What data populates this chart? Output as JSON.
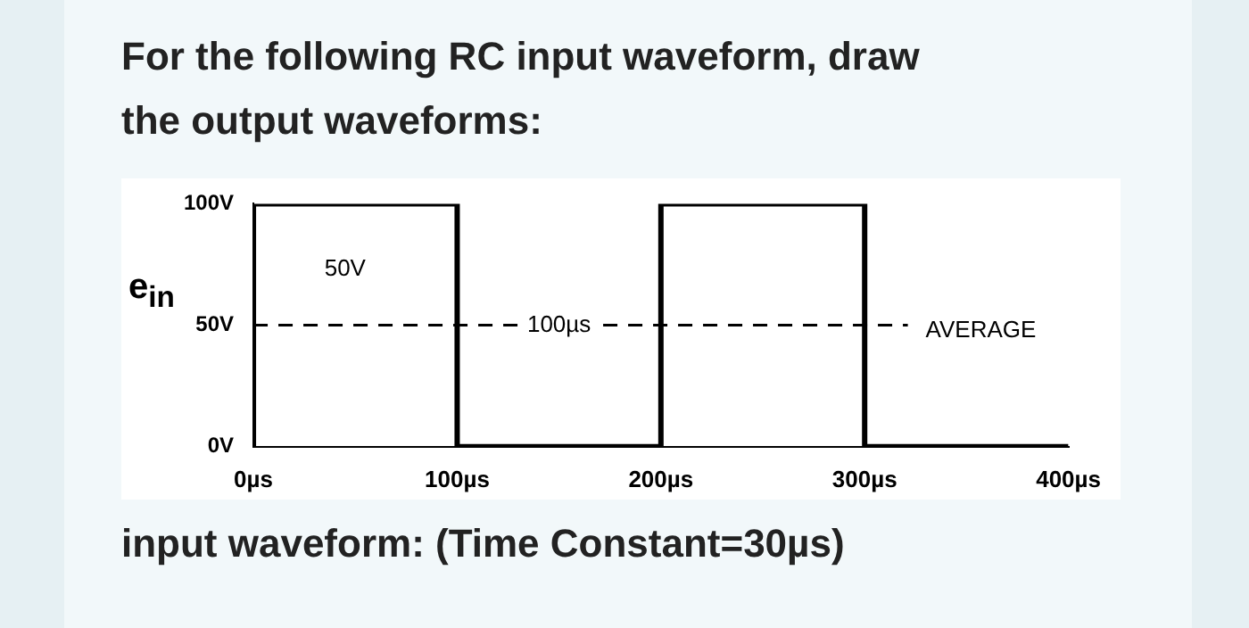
{
  "chart_data": {
    "type": "step",
    "title": "For the following RC input waveform, draw the output waveforms:",
    "ylabel": "e$_{in}$",
    "x": [
      0,
      0,
      100,
      200,
      300,
      400
    ],
    "series": [
      {
        "color": "#000000",
        "values": [
          0,
          100,
          0,
          100,
          0,
          0
        ]
      }
    ],
    "xlim": [
      0,
      400
    ],
    "xticks": [
      {
        "value": 0,
        "label": "0µs"
      },
      {
        "value": 100,
        "label": "100µs"
      },
      {
        "value": 200,
        "label": "200µs"
      },
      {
        "value": 300,
        "label": "300µs"
      },
      {
        "value": 400,
        "label": "400µs"
      }
    ],
    "ylim": [
      0,
      100
    ],
    "yticks": [
      {
        "value": 0,
        "label": "0V"
      },
      {
        "value": 50,
        "label": "50V"
      },
      {
        "value": 100,
        "label": "100V"
      }
    ],
    "ref_lines": [
      {
        "axis": "y",
        "value": 50,
        "label": "AVERAGE",
        "line_style": "dashed",
        "color": "#000000"
      }
    ],
    "annotations": [
      {
        "text": "50V",
        "x": 45,
        "y": 73
      },
      {
        "text": "100µs",
        "x": 150,
        "y": 50
      },
      "input waveform: (Time Constant=30µs)"
    ],
    "grid": false,
    "legend": false,
    "marker": "none",
    "line_style": "solid"
  }
}
